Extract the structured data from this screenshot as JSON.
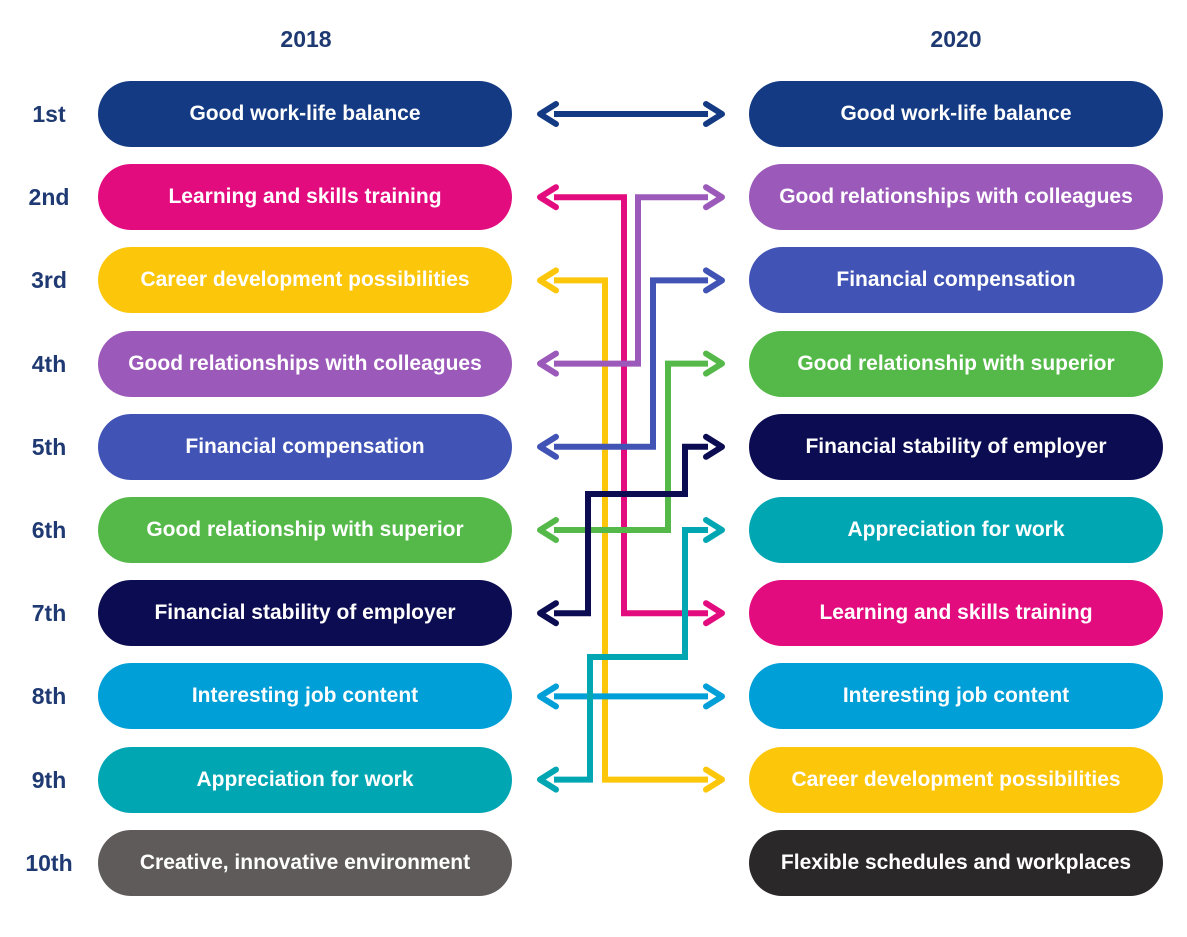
{
  "years": {
    "left": "2018",
    "right": "2020"
  },
  "ranks": [
    "1st",
    "2nd",
    "3rd",
    "4th",
    "5th",
    "6th",
    "7th",
    "8th",
    "9th",
    "10th"
  ],
  "ranking_2018": [
    {
      "label": "Good work-life balance",
      "color": "#133a82"
    },
    {
      "label": "Learning and skills training",
      "color": "#e20c7f"
    },
    {
      "label": "Career development possibilities",
      "color": "#fcc60a"
    },
    {
      "label": "Good relationships with colleagues",
      "color": "#9b59b9"
    },
    {
      "label": "Financial compensation",
      "color": "#4154b5"
    },
    {
      "label": "Good relationship with superior",
      "color": "#54b948"
    },
    {
      "label": "Financial stability of employer",
      "color": "#0c0c52"
    },
    {
      "label": "Interesting job content",
      "color": "#009fd8"
    },
    {
      "label": "Appreciation for work",
      "color": "#00a7b3"
    },
    {
      "label": "Creative, innovative environment",
      "color": "#5f5b5a"
    }
  ],
  "ranking_2020": [
    {
      "label": "Good work-life balance",
      "color": "#133a82"
    },
    {
      "label": "Good relationships with colleagues",
      "color": "#9b59b9"
    },
    {
      "label": "Financial compensation",
      "color": "#4154b5"
    },
    {
      "label": "Good relationship with superior",
      "color": "#54b948"
    },
    {
      "label": "Financial stability of employer",
      "color": "#0c0c52"
    },
    {
      "label": "Appreciation for work",
      "color": "#00a7b3"
    },
    {
      "label": "Learning and skills training",
      "color": "#e20c7f"
    },
    {
      "label": "Interesting job content",
      "color": "#009fd8"
    },
    {
      "label": "Career development possibilities",
      "color": "#fcc60a"
    },
    {
      "label": "Flexible schedules and workplaces",
      "color": "#2b2829"
    }
  ],
  "rank_changes": [
    {
      "from_2018": 1,
      "to_2020": 1,
      "color": "#133a82"
    },
    {
      "from_2018": 2,
      "to_2020": 7,
      "color": "#e20c7f"
    },
    {
      "from_2018": 3,
      "to_2020": 9,
      "color": "#fcc60a"
    },
    {
      "from_2018": 4,
      "to_2020": 2,
      "color": "#9b59b9"
    },
    {
      "from_2018": 5,
      "to_2020": 3,
      "color": "#4154b5"
    },
    {
      "from_2018": 6,
      "to_2020": 4,
      "color": "#54b948"
    },
    {
      "from_2018": 7,
      "to_2020": 5,
      "color": "#0c0c52"
    },
    {
      "from_2018": 8,
      "to_2020": 8,
      "color": "#009fd8"
    },
    {
      "from_2018": 9,
      "to_2020": 6,
      "color": "#00a7b3"
    }
  ]
}
